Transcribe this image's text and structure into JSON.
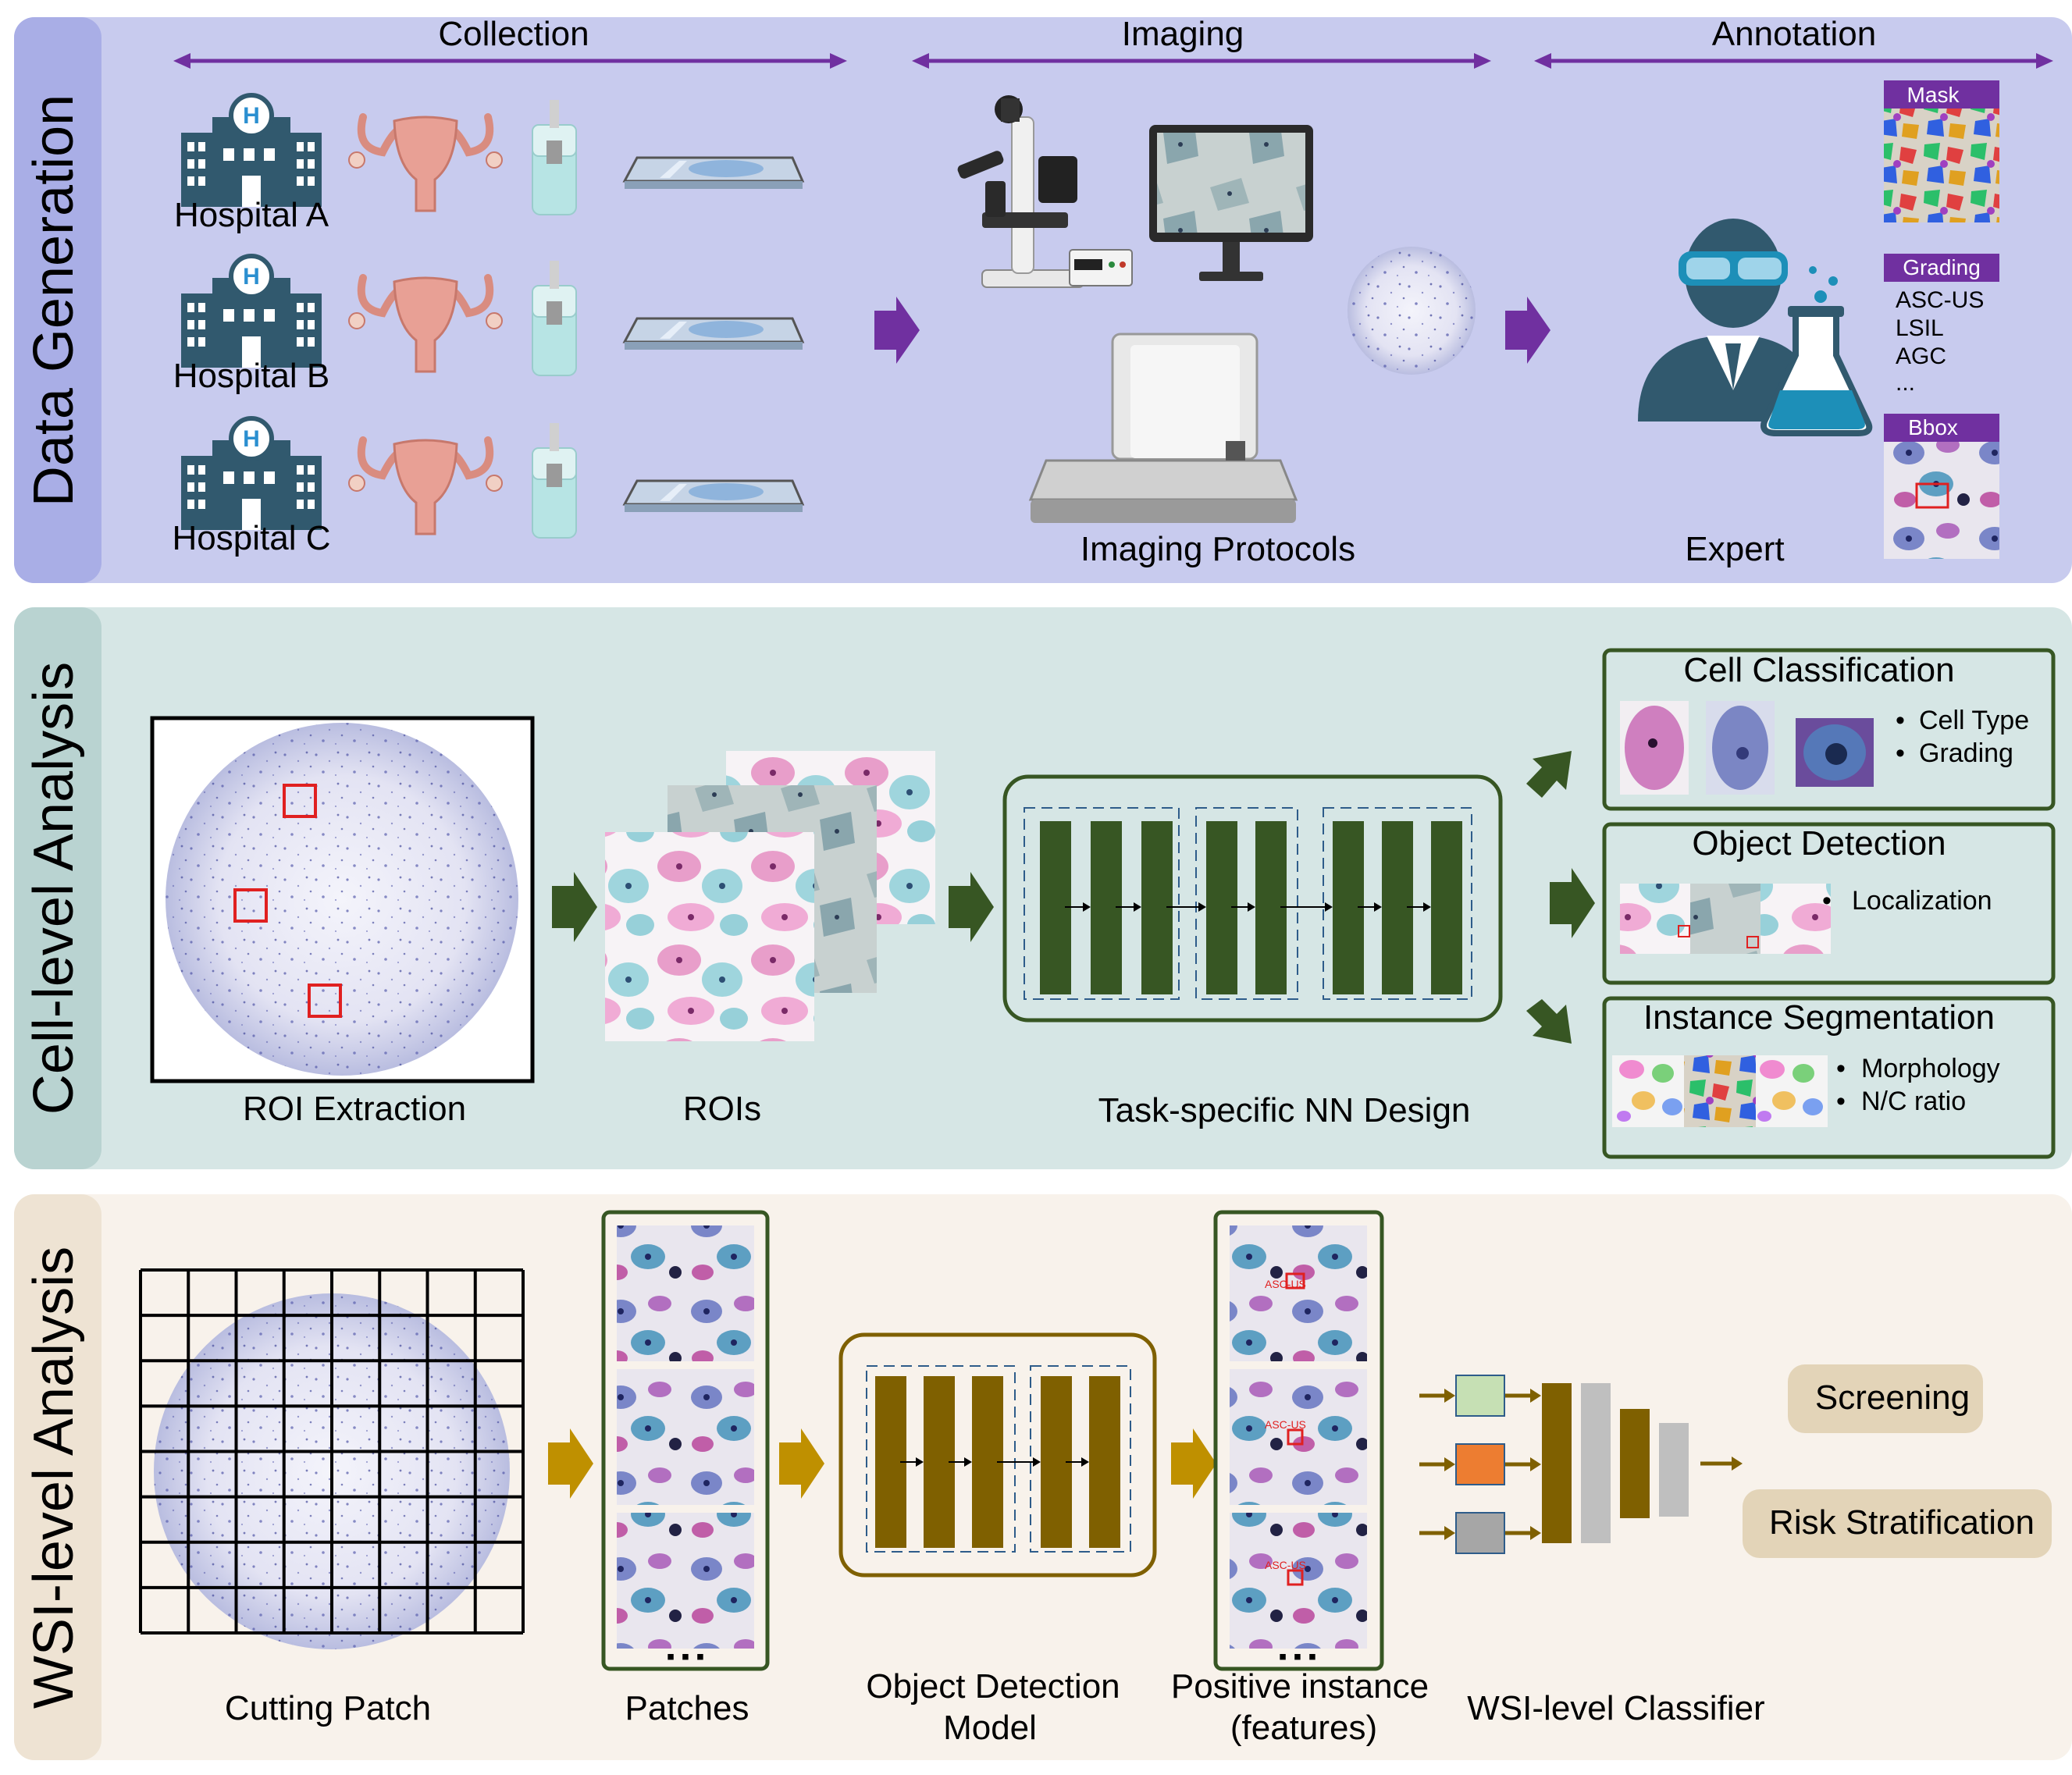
{
  "sections": {
    "data_generation": {
      "side_label": "Data Generation",
      "stages": [
        "Collection",
        "Imaging",
        "Annotation"
      ],
      "hospitals": [
        "Hospital A",
        "Hospital B",
        "Hospital C"
      ],
      "imaging_caption": "Imaging Protocols",
      "expert_caption": "Expert",
      "annotation": {
        "mask_label": "Mask",
        "grading_label": "Grading",
        "grading_items": [
          "ASC-US",
          "LSIL",
          "AGC",
          "..."
        ],
        "bbox_label": "Bbox"
      }
    },
    "cell_level": {
      "side_label": "Cell-level Analysis",
      "roi_caption": "ROI Extraction",
      "rois_caption": "ROIs",
      "nn_caption": "Task-specific NN Design",
      "tasks": [
        {
          "title": "Cell Classification",
          "bullets": [
            "Cell Type",
            "Grading"
          ]
        },
        {
          "title": "Object Detection",
          "bullets": [
            "Localization"
          ]
        },
        {
          "title": "Instance Segmentation",
          "bullets": [
            "Morphology",
            "N/C ratio"
          ]
        }
      ]
    },
    "wsi_level": {
      "side_label": "WSI-level Analysis",
      "cutting_caption": "Cutting Patch",
      "patches_caption": "Patches",
      "model_caption_1": "Object Detection",
      "model_caption_2": "Model",
      "positive_caption_1": "Positive instance",
      "positive_caption_2": "(features)",
      "classifier_caption": "WSI-level Classifier",
      "outputs": [
        "Screening",
        "Risk Stratification"
      ],
      "patch_dots": "▪ ▪ ▪",
      "overlay_label": "ASC-US"
    }
  },
  "colors": {
    "panel1": "#c8cbee",
    "panel1_tab": "#a9aee6",
    "panel2": "#d6e6e5",
    "panel2_tab": "#b9d3d1",
    "panel3": "#f8f2eb",
    "panel3_tab": "#eee3d3",
    "purple": "#7030a0",
    "dark_green": "#375623",
    "olive": "#7f6000",
    "gold": "#bf9000",
    "slate": "#31596e",
    "red": "#e02020"
  }
}
